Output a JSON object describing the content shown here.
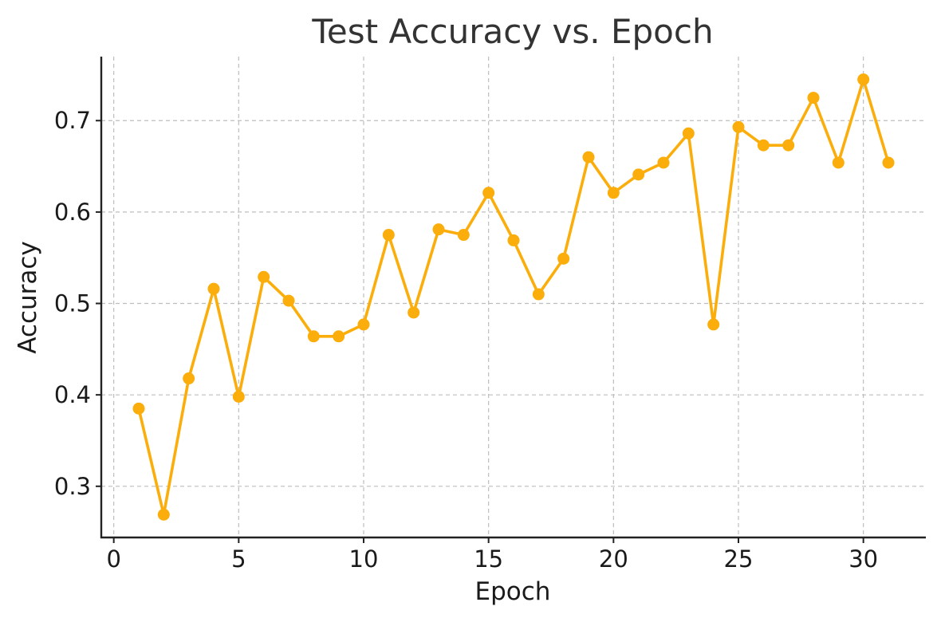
{
  "chart_data": {
    "type": "line",
    "title": "Test Accuracy vs. Epoch",
    "xlabel": "Epoch",
    "ylabel": "Accuracy",
    "xlim": [
      -0.5,
      32.5
    ],
    "ylim": [
      0.244,
      0.77
    ],
    "xticks": [
      0,
      5,
      10,
      15,
      20,
      25,
      30
    ],
    "yticks": [
      0.3,
      0.4,
      0.5,
      0.6,
      0.7
    ],
    "ytick_labels": [
      "0.3",
      "0.4",
      "0.5",
      "0.6",
      "0.7"
    ],
    "grid": true,
    "legend": "none",
    "color": "#FBAE0B",
    "series": [
      {
        "x": [
          1,
          2,
          3,
          4,
          5,
          6,
          7,
          8,
          9,
          10,
          11,
          12,
          13,
          14,
          15,
          16,
          17,
          18,
          19,
          20,
          21,
          22,
          23,
          24,
          25,
          26,
          27,
          28,
          29,
          30,
          31
        ],
        "values": [
          0.385,
          0.269,
          0.418,
          0.516,
          0.398,
          0.529,
          0.503,
          0.464,
          0.464,
          0.477,
          0.575,
          0.49,
          0.581,
          0.575,
          0.621,
          0.569,
          0.51,
          0.549,
          0.66,
          0.621,
          0.641,
          0.654,
          0.686,
          0.477,
          0.693,
          0.673,
          0.673,
          0.725,
          0.654,
          0.745,
          0.654
        ]
      }
    ]
  }
}
